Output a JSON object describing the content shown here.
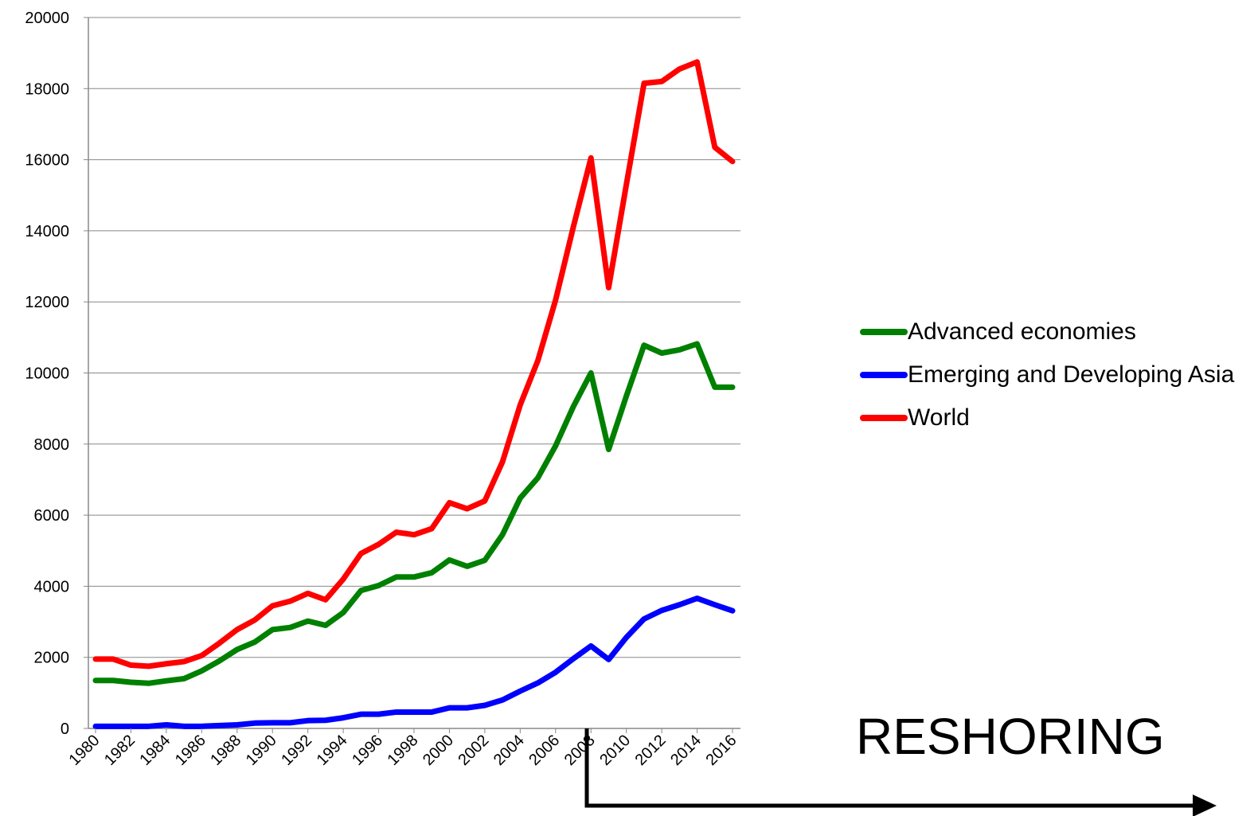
{
  "chart_data": {
    "type": "line",
    "annotation": "RESHORING",
    "x": [
      1980,
      1981,
      1982,
      1983,
      1984,
      1985,
      1986,
      1987,
      1988,
      1989,
      1990,
      1991,
      1992,
      1993,
      1994,
      1995,
      1996,
      1997,
      1998,
      1999,
      2000,
      2001,
      2002,
      2003,
      2004,
      2005,
      2006,
      2007,
      2008,
      2009,
      2010,
      2011,
      2012,
      2013,
      2014,
      2015,
      2016
    ],
    "series": [
      {
        "name": "Advanced economies",
        "color": "#008000",
        "values": [
          1350,
          1350,
          1300,
          1270,
          1340,
          1400,
          1620,
          1900,
          2220,
          2430,
          2780,
          2840,
          3020,
          2900,
          3260,
          3880,
          4020,
          4260,
          4260,
          4380,
          4740,
          4560,
          4730,
          5450,
          6480,
          7050,
          7950,
          9050,
          10000,
          7850,
          9350,
          10780,
          10560,
          10650,
          10820,
          9600,
          9600
        ]
      },
      {
        "name": "Emerging and Developing Asia",
        "color": "#0000ff",
        "values": [
          60,
          60,
          60,
          60,
          100,
          60,
          60,
          80,
          100,
          150,
          160,
          160,
          220,
          230,
          300,
          400,
          400,
          460,
          460,
          460,
          580,
          580,
          650,
          800,
          1050,
          1280,
          1580,
          1960,
          2320,
          1940,
          2560,
          3080,
          3320,
          3480,
          3660,
          3480,
          3310
        ]
      },
      {
        "name": "World",
        "color": "#ff0000",
        "values": [
          1950,
          1950,
          1780,
          1750,
          1820,
          1880,
          2050,
          2400,
          2780,
          3050,
          3450,
          3580,
          3800,
          3620,
          4200,
          4920,
          5180,
          5520,
          5450,
          5620,
          6350,
          6180,
          6400,
          7500,
          9100,
          10350,
          12050,
          14100,
          16050,
          12400,
          15300,
          18150,
          18200,
          18550,
          18750,
          16350,
          15950
        ]
      }
    ],
    "xlim": [
      1980,
      2016
    ],
    "xticks": [
      1980,
      1982,
      1984,
      1986,
      1988,
      1990,
      1992,
      1994,
      1996,
      1998,
      2000,
      2002,
      2004,
      2006,
      2008,
      2010,
      2012,
      2014,
      2016
    ],
    "ylim": [
      0,
      20000
    ],
    "yticks": [
      0,
      2000,
      4000,
      6000,
      8000,
      10000,
      12000,
      14000,
      16000,
      18000,
      20000
    ],
    "grid": true,
    "legend": "right"
  }
}
